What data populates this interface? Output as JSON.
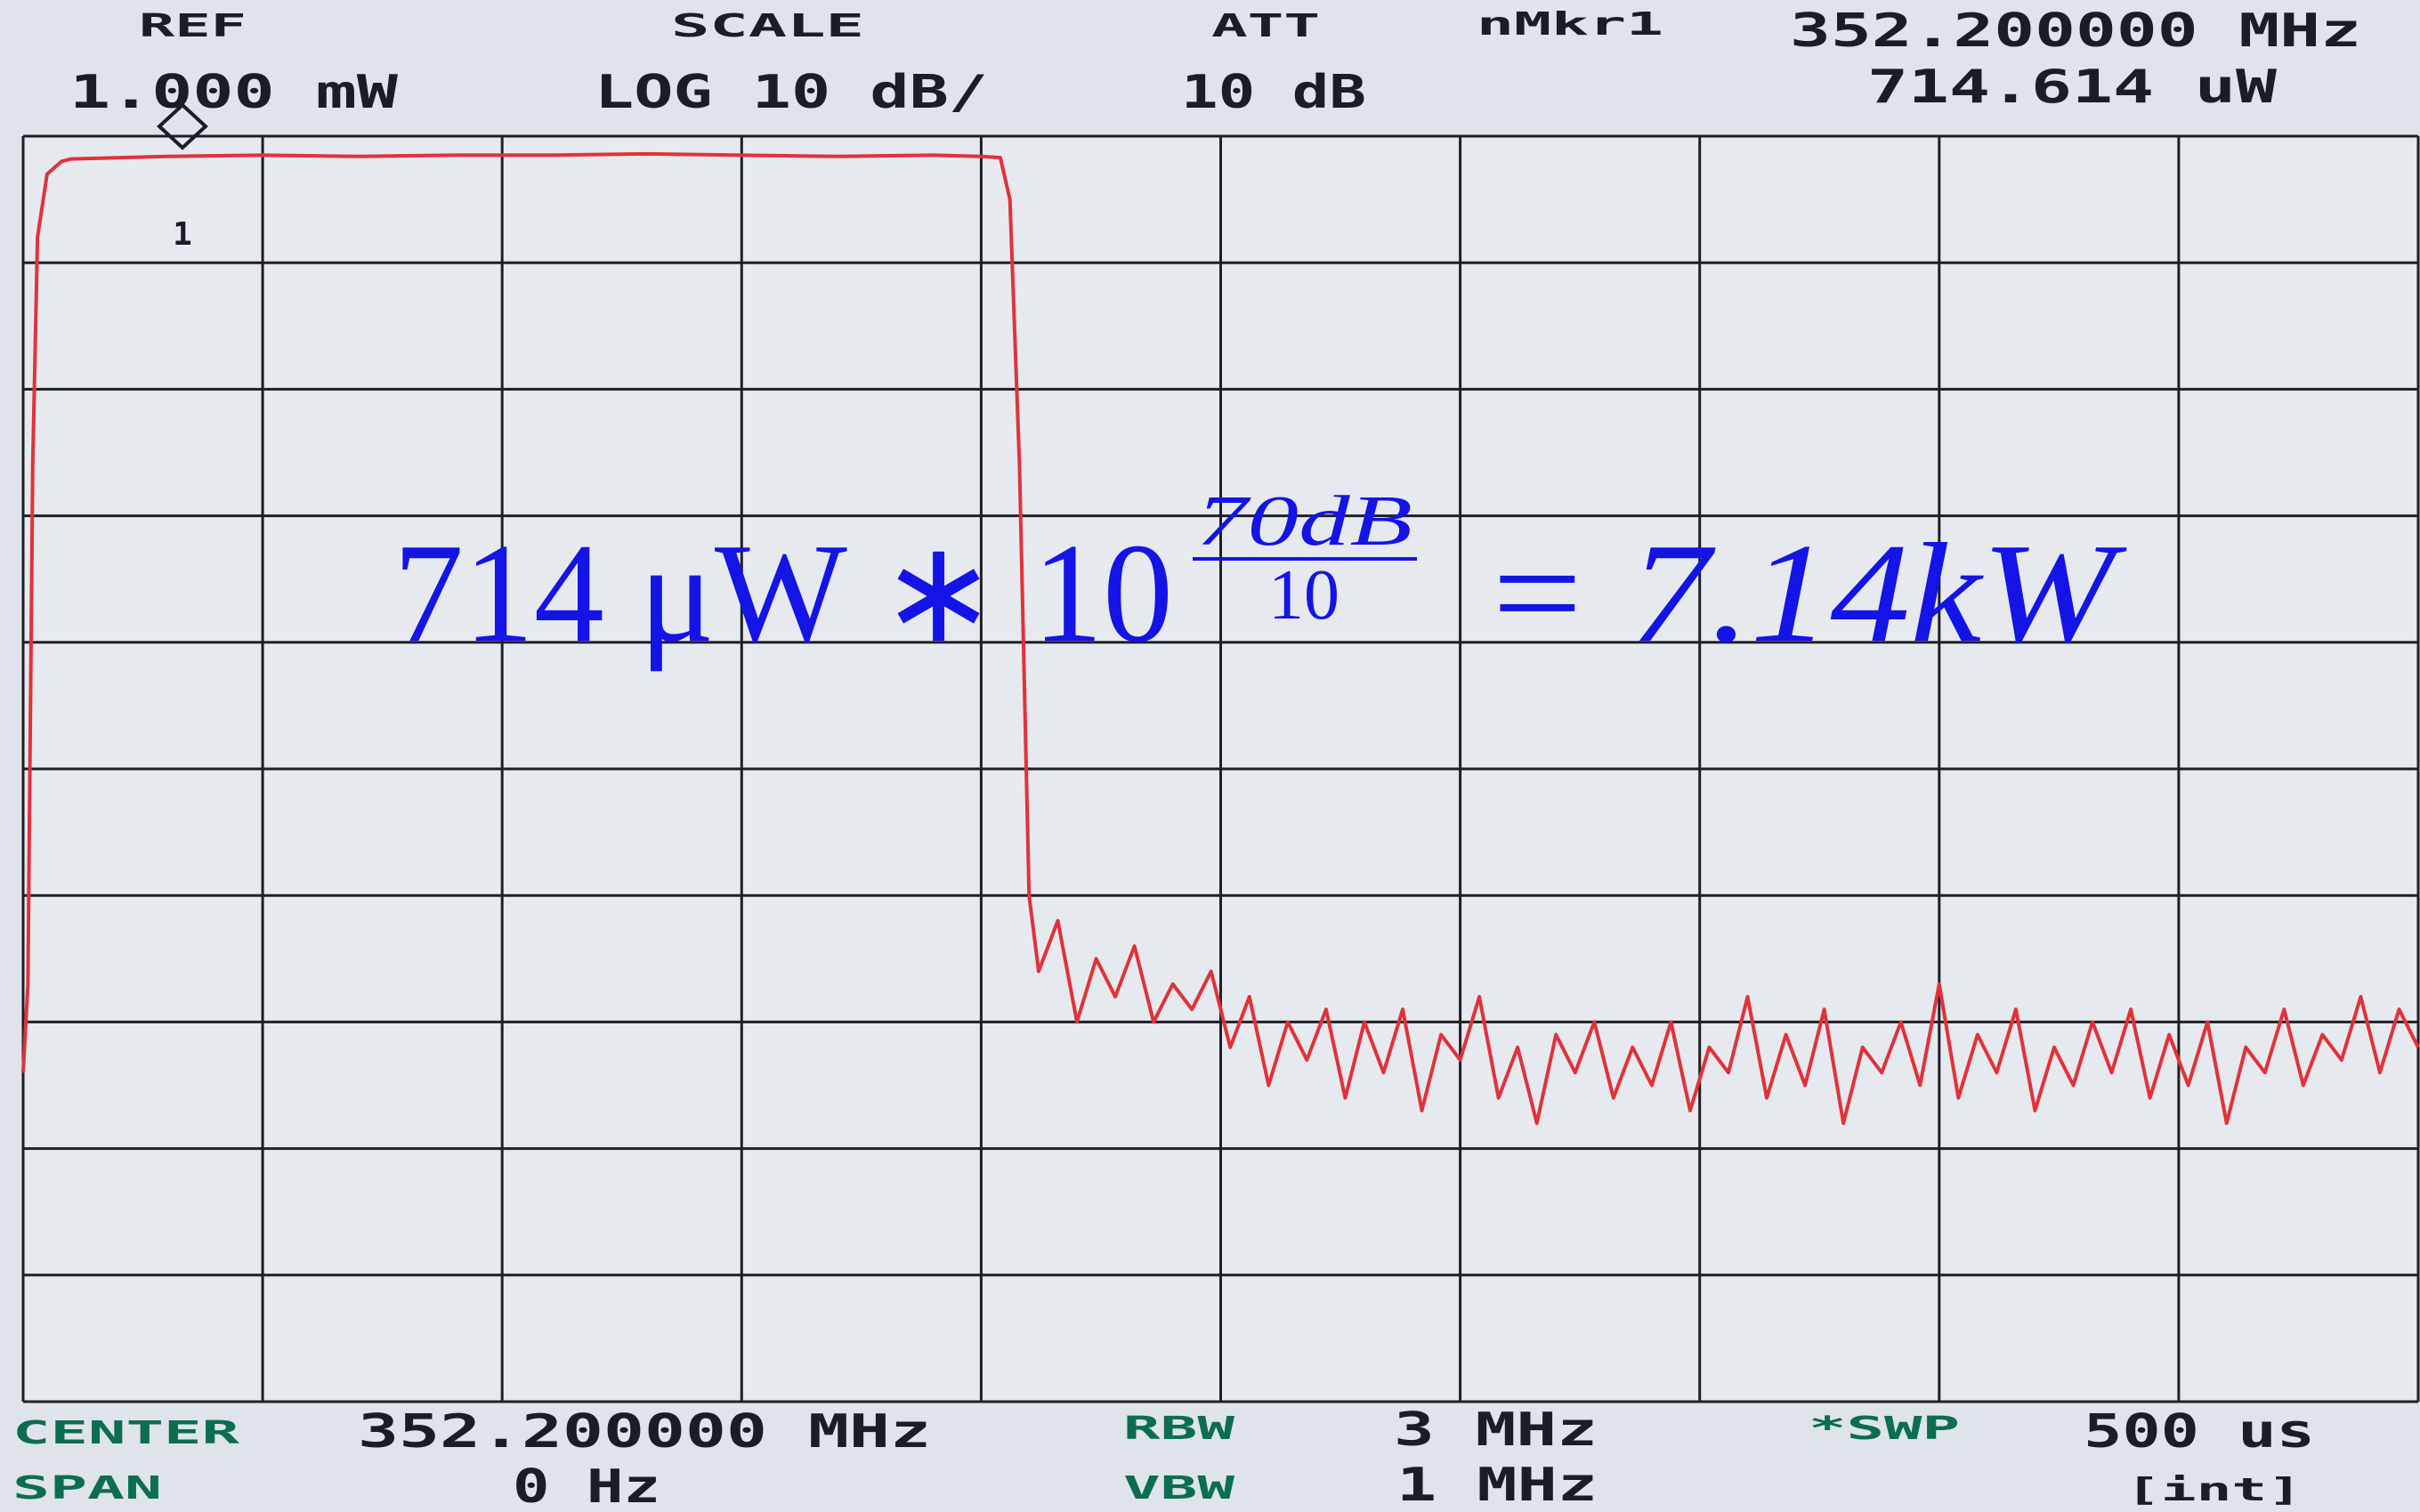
{
  "header": {
    "ref_label": "REF",
    "ref_value": "1.000 mW",
    "scale_label": "SCALE",
    "scale_value": "LOG 10 dB/",
    "att_label": "ATT",
    "att_value": "10 dB",
    "marker_label": "nMkr1",
    "marker_freq": "352.200000 MHz",
    "marker_power": "714.614 uW"
  },
  "footer": {
    "center_label": "CENTER",
    "center_value": "352.200000 MHz",
    "span_label": "SPAN",
    "span_value": "0 Hz",
    "rbw_label": "RBW",
    "rbw_value": "3 MHz",
    "vbw_label": "VBW",
    "vbw_value": "1 MHz",
    "swp_label": "*SWP",
    "swp_value": "500 us",
    "swp_mode": "[int]"
  },
  "marker_number": "1",
  "annotation": {
    "base": "714 μW ∗ 10",
    "exponent_numerator": "70dB",
    "exponent_denominator": "10",
    "result": "= 7.14kW"
  },
  "chart_data": {
    "type": "line",
    "x": [
      0,
      1,
      2,
      3,
      5,
      8,
      10,
      30,
      50,
      70,
      90,
      110,
      130,
      150,
      170,
      190,
      200,
      204,
      206,
      208,
      210,
      212,
      216,
      220,
      224,
      228,
      232,
      236,
      240,
      244,
      248,
      252,
      256,
      260,
      264,
      268,
      272,
      276,
      280,
      284,
      288,
      292,
      296,
      300,
      304,
      308,
      312,
      316,
      320,
      324,
      328,
      332,
      336,
      340,
      344,
      348,
      352,
      356,
      360,
      364,
      368,
      372,
      376,
      380,
      384,
      388,
      392,
      396,
      400,
      404,
      408,
      412,
      416,
      420,
      424,
      428,
      432,
      436,
      440,
      444,
      448,
      452,
      456,
      460,
      464,
      468,
      472,
      476,
      480,
      484,
      488,
      492,
      496,
      500
    ],
    "series": [
      {
        "color": "#e0323a",
        "values": [
          -74,
          -67,
          -26,
          -8,
          -3,
          -2,
          -1.8,
          -1.6,
          -1.5,
          -1.6,
          -1.5,
          -1.5,
          -1.4,
          -1.5,
          -1.6,
          -1.5,
          -1.6,
          -1.7,
          -5,
          -26,
          -60,
          -66,
          -62,
          -70,
          -65,
          -68,
          -64,
          -70,
          -67,
          -69,
          -66,
          -72,
          -68,
          -75,
          -70,
          -73,
          -69,
          -76,
          -70,
          -74,
          -69,
          -77,
          -71,
          -73,
          -68,
          -76,
          -72,
          -78,
          -71,
          -74,
          -70,
          -76,
          -72,
          -75,
          -70,
          -77,
          -72,
          -74,
          -68,
          -76,
          -71,
          -75,
          -69,
          -78,
          -72,
          -74,
          -70,
          -75,
          -67,
          -76,
          -71,
          -74,
          -69,
          -77,
          -72,
          -75,
          -70,
          -74,
          -69,
          -76,
          -71,
          -75,
          -70,
          -78,
          -72,
          -74,
          -69,
          -75,
          -71,
          -73,
          -68,
          -74,
          -69,
          -72
        ]
      }
    ],
    "xlim": [
      0,
      500
    ],
    "ylim": [
      -100,
      0
    ],
    "xticks": [
      0,
      50,
      100,
      150,
      200,
      250,
      300,
      350,
      400,
      450,
      500
    ],
    "yticks": [
      -100,
      -90,
      -80,
      -70,
      -60,
      -50,
      -40,
      -30,
      -20,
      -10,
      0
    ],
    "grid": true
  }
}
